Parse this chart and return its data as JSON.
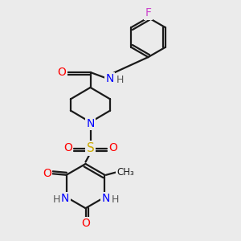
{
  "bg_color": "#ebebeb",
  "bond_color": "#1a1a1a",
  "bond_lw": 1.6,
  "atom_colors": {
    "F": "#cc44cc",
    "O": "#ff0000",
    "N": "#0000ff",
    "S": "#ccaa00",
    "H": "#555555",
    "C": "#1a1a1a"
  }
}
